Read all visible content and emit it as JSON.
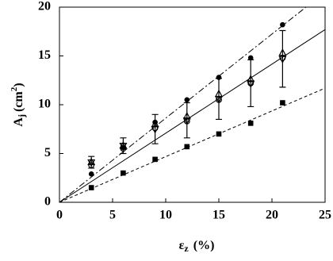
{
  "chart_data": {
    "type": "scatter",
    "xlabel": {
      "symbol": "ε",
      "sub": "z",
      "unit": "(%)"
    },
    "ylabel": {
      "symbol": "A",
      "sub": "j",
      "unit": "(cm",
      "sup": "2",
      "close": ")"
    },
    "xlim": [
      0,
      25
    ],
    "ylim": [
      0,
      20
    ],
    "xticks": [
      0,
      5,
      10,
      15,
      20,
      25
    ],
    "yticks": [
      0,
      5,
      10,
      15,
      20
    ],
    "series": [
      {
        "marker": "filled-circle",
        "color": "#000000",
        "x": [
          3,
          6,
          9,
          12,
          15,
          18,
          21
        ],
        "values": [
          2.9,
          5.6,
          8.2,
          10.5,
          12.8,
          14.8,
          18.2
        ]
      },
      {
        "marker": "square",
        "color": "#000000",
        "x": [
          3,
          6,
          9,
          12,
          15,
          18,
          21
        ],
        "values": [
          1.5,
          3.0,
          4.4,
          5.7,
          7.0,
          8.1,
          10.2
        ]
      },
      {
        "marker": "open-triangle",
        "color": "#000000",
        "x": [
          3,
          6,
          9,
          12,
          15,
          18,
          21
        ],
        "values": [
          4.1,
          5.8,
          7.5,
          8.4,
          10.6,
          12.2,
          14.7
        ],
        "errors": [
          0.6,
          0.8,
          1.5,
          1.8,
          2.1,
          2.4,
          2.9
        ]
      },
      {
        "marker": "open-triangle-up",
        "color": "#000000",
        "x": [
          3,
          6,
          9,
          12,
          15,
          18,
          21
        ],
        "values": [
          4.1,
          5.8,
          8.0,
          8.8,
          11.1,
          12.6,
          15.3
        ]
      },
      {
        "marker": "open-circle",
        "color": "#000000",
        "x": [
          3,
          6,
          9,
          12,
          15,
          18,
          21
        ],
        "values": [
          3.8,
          5.5,
          7.6,
          8.3,
          10.5,
          12.2,
          14.8
        ]
      },
      {
        "line": "dash-dot",
        "color": "#000000",
        "x": [
          0,
          23.2
        ],
        "values": [
          0,
          20
        ]
      },
      {
        "line": "solid",
        "color": "#000000",
        "x": [
          0,
          25
        ],
        "values": [
          0,
          17.7
        ]
      },
      {
        "line": "dashed",
        "color": "#000000",
        "x": [
          0,
          25
        ],
        "values": [
          0,
          11.7
        ]
      }
    ]
  }
}
